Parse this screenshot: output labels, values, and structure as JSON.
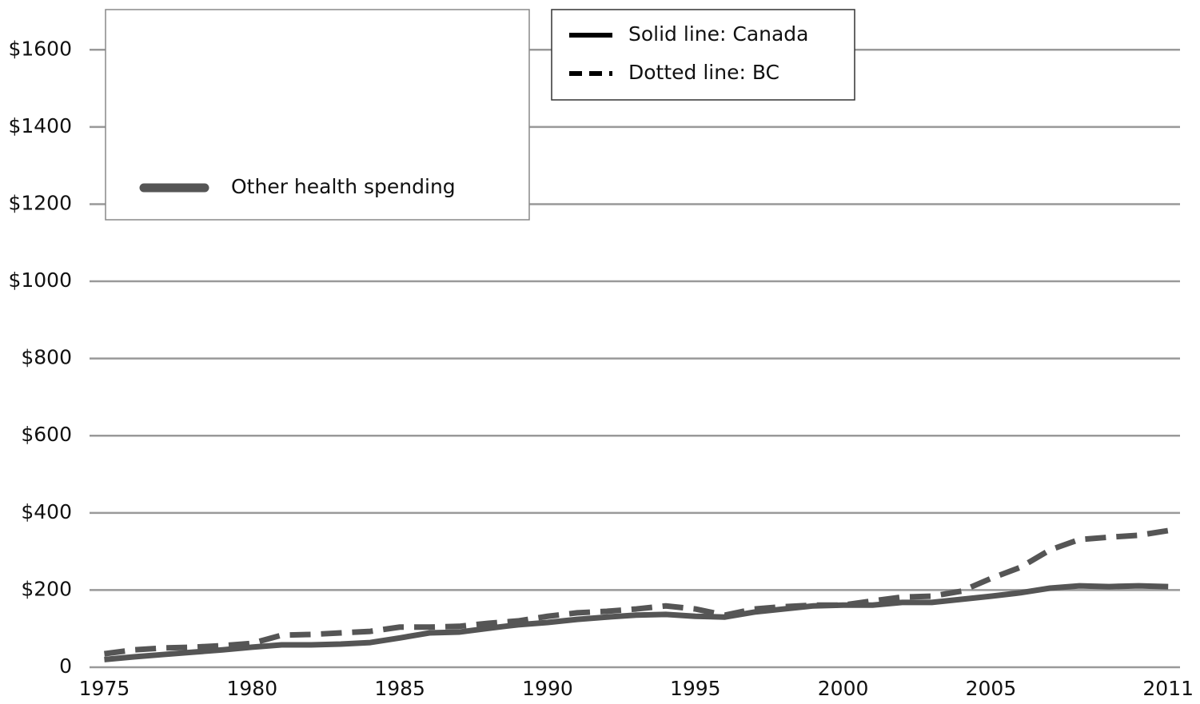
{
  "chart_data": {
    "type": "line",
    "x": [
      1975,
      1976,
      1977,
      1978,
      1979,
      1980,
      1981,
      1982,
      1983,
      1984,
      1985,
      1986,
      1987,
      1988,
      1989,
      1990,
      1991,
      1992,
      1993,
      1994,
      1995,
      1996,
      1997,
      1998,
      1999,
      2000,
      2001,
      2002,
      2003,
      2004,
      2005,
      2006,
      2007,
      2008,
      2009,
      2010,
      2011
    ],
    "series": [
      {
        "name": "Solid line: Canada",
        "color": "#555555",
        "dash": false,
        "values": [
          20,
          27,
          33,
          39,
          45,
          52,
          58,
          58,
          60,
          64,
          76,
          89,
          91,
          101,
          110,
          116,
          124,
          130,
          135,
          137,
          132,
          130,
          143,
          151,
          159,
          161,
          161,
          168,
          168,
          176,
          184,
          193,
          205,
          211,
          209,
          211,
          209
        ]
      },
      {
        "name": "Dotted line: BC",
        "color": "#555555",
        "dash": true,
        "values": [
          35,
          45,
          50,
          52,
          56,
          62,
          83,
          85,
          89,
          93,
          104,
          104,
          106,
          114,
          120,
          132,
          141,
          145,
          151,
          159,
          151,
          135,
          151,
          157,
          161,
          161,
          172,
          182,
          184,
          197,
          230,
          259,
          304,
          331,
          337,
          342,
          354
        ]
      }
    ],
    "annotation": "Other health spending",
    "xlim": [
      1974.5,
      2011.4
    ],
    "xticks": [
      1975,
      1980,
      1985,
      1990,
      1995,
      2000,
      2005,
      2011
    ],
    "ylim": [
      0,
      1700
    ],
    "yticks": [
      0,
      {
        "value": 200,
        "label": "$200"
      },
      {
        "value": 400,
        "label": "$400"
      },
      {
        "value": 600,
        "label": "$600"
      },
      {
        "value": 800,
        "label": "$800"
      },
      {
        "value": 1000,
        "label": "$1000"
      },
      {
        "value": 1200,
        "label": "$1200"
      },
      {
        "value": 1400,
        "label": "$1400"
      },
      {
        "value": 1600,
        "label": "$1600"
      }
    ],
    "grid": true
  }
}
